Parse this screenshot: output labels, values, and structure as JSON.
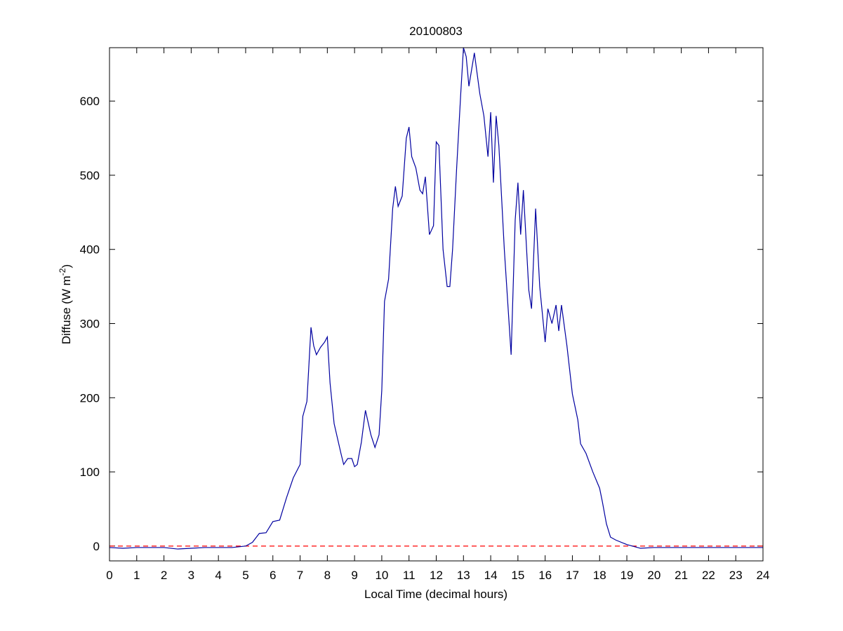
{
  "chart_data": {
    "type": "line",
    "title": "20100803",
    "xlabel": "Local Time (decimal hours)",
    "ylabel": {
      "text": "Diffuse (W m",
      "superscript": "-2",
      "suffix": ")"
    },
    "xlim": [
      0,
      24
    ],
    "ylim": [
      -20,
      672
    ],
    "xticks": [
      0,
      1,
      2,
      3,
      4,
      5,
      6,
      7,
      8,
      9,
      10,
      11,
      12,
      13,
      14,
      15,
      16,
      17,
      18,
      19,
      20,
      21,
      22,
      23,
      24
    ],
    "yticks": [
      0,
      100,
      200,
      300,
      400,
      500,
      600
    ],
    "hline": {
      "value": 0,
      "color": "#ff0000",
      "style": "dashed"
    },
    "series": [
      {
        "color": "#0000a0",
        "x": [
          0,
          0.5,
          1,
          1.5,
          2,
          2.5,
          3,
          3.5,
          4,
          4.5,
          5,
          5.25,
          5.5,
          5.75,
          6,
          6.25,
          6.5,
          6.75,
          7,
          7.1,
          7.25,
          7.4,
          7.5,
          7.6,
          7.75,
          7.9,
          8,
          8.1,
          8.25,
          8.5,
          8.6,
          8.75,
          8.9,
          9,
          9.1,
          9.25,
          9.4,
          9.6,
          9.75,
          9.9,
          10,
          10.1,
          10.25,
          10.4,
          10.5,
          10.6,
          10.75,
          10.9,
          11,
          11.1,
          11.25,
          11.4,
          11.5,
          11.6,
          11.75,
          11.9,
          12,
          12.1,
          12.25,
          12.4,
          12.5,
          12.6,
          12.75,
          12.9,
          13,
          13.1,
          13.2,
          13.4,
          13.6,
          13.75,
          13.9,
          14,
          14.1,
          14.2,
          14.3,
          14.5,
          14.75,
          14.9,
          15,
          15.1,
          15.2,
          15.4,
          15.5,
          15.65,
          15.8,
          16,
          16.1,
          16.25,
          16.4,
          16.5,
          16.6,
          16.8,
          17,
          17.2,
          17.3,
          17.5,
          17.75,
          18,
          18.1,
          18.25,
          18.4,
          18.6,
          19,
          19.5,
          20,
          21,
          22,
          23,
          24
        ],
        "values": [
          -2,
          -3,
          -2,
          -2,
          -2,
          -4,
          -3,
          -2,
          -2,
          -2,
          0,
          5,
          17,
          18,
          33,
          35,
          65,
          92,
          110,
          175,
          195,
          295,
          270,
          258,
          268,
          275,
          282,
          220,
          165,
          125,
          110,
          118,
          118,
          107,
          110,
          140,
          183,
          150,
          133,
          150,
          210,
          330,
          360,
          455,
          485,
          458,
          472,
          550,
          565,
          525,
          510,
          480,
          475,
          498,
          420,
          432,
          545,
          540,
          400,
          350,
          350,
          400,
          510,
          610,
          672,
          660,
          620,
          665,
          610,
          580,
          525,
          585,
          490,
          580,
          540,
          400,
          258,
          440,
          490,
          420,
          480,
          345,
          320,
          455,
          350,
          275,
          320,
          300,
          325,
          290,
          325,
          270,
          205,
          170,
          138,
          125,
          100,
          78,
          60,
          30,
          12,
          8,
          2,
          -3,
          -2,
          -2,
          -2,
          -2,
          -2
        ]
      }
    ]
  }
}
